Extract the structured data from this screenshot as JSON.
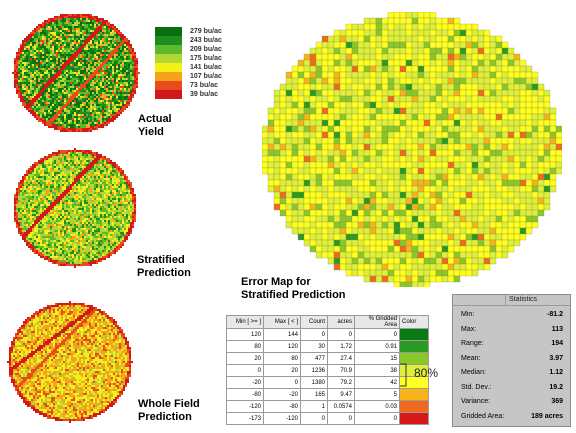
{
  "legend": {
    "items": [
      {
        "label": "279 bu/ac",
        "color": "#0a6e12"
      },
      {
        "label": "243 bu/ac",
        "color": "#1e8e1e"
      },
      {
        "label": "209 bu/ac",
        "color": "#5fb82a"
      },
      {
        "label": "175 bu/ac",
        "color": "#b3d634"
      },
      {
        "label": "141 bu/ac",
        "color": "#f2f21a"
      },
      {
        "label": "107 bu/ac",
        "color": "#f6a21a"
      },
      {
        "label": "73 bu/ac",
        "color": "#ea4a1c"
      },
      {
        "label": "39 bu/ac",
        "color": "#d01a1a"
      }
    ]
  },
  "maps": {
    "actual_label": "Actual\nYield",
    "stratified_label": "Stratified\nPrediction",
    "whole_label": "Whole Field\nPrediction",
    "error_label": "Error Map for\nStratified Prediction"
  },
  "error_table": {
    "headers": [
      "Min [ >= ]",
      "Max [ < ]",
      "Count",
      "acres",
      "% Gridded Area",
      "Color"
    ],
    "rows": [
      {
        "min": "120",
        "max": "144",
        "count": "0",
        "acres": "0",
        "pct": "0",
        "color": "#0a7a14"
      },
      {
        "min": "80",
        "max": "120",
        "count": "30",
        "acres": "1.72",
        "pct": "0.91",
        "color": "#2a9a22"
      },
      {
        "min": "20",
        "max": "80",
        "count": "477",
        "acres": "27.4",
        "pct": "15",
        "color": "#8ac82a"
      },
      {
        "min": "0",
        "max": "20",
        "count": "1236",
        "acres": "70.9",
        "pct": "38",
        "color": "#dff03a"
      },
      {
        "min": "-20",
        "max": "0",
        "count": "1380",
        "acres": "79.2",
        "pct": "42",
        "color": "#ffff20"
      },
      {
        "min": "-80",
        "max": "-20",
        "count": "165",
        "acres": "9.47",
        "pct": "5",
        "color": "#f6b41a"
      },
      {
        "min": "-120",
        "max": "-80",
        "count": "1",
        "acres": "0.0574",
        "pct": "0.03",
        "color": "#ef6a1c"
      },
      {
        "min": "-173",
        "max": "-120",
        "count": "0",
        "acres": "0",
        "pct": "0",
        "color": "#d61818"
      }
    ],
    "bracket_label": "80%"
  },
  "statistics": {
    "title": "Statistics",
    "rows": [
      {
        "label": "Min:",
        "value": "-81.2"
      },
      {
        "label": "Max:",
        "value": "113"
      },
      {
        "label": "Range:",
        "value": "194"
      },
      {
        "label": "Mean:",
        "value": "3.97"
      },
      {
        "label": "Median:",
        "value": "1.12"
      },
      {
        "label": "Std. Dev.:",
        "value": "19.2"
      },
      {
        "label": "Variance:",
        "value": "369"
      },
      {
        "label": "Gridded Area:",
        "value": "189 acres"
      }
    ]
  }
}
